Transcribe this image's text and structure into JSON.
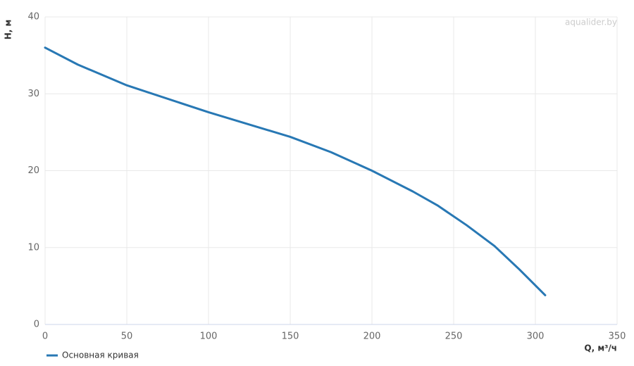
{
  "chart_data": {
    "type": "line",
    "watermark": "aqualider.by",
    "x_label": "Q, м³/ч",
    "y_label": "H, м",
    "x": [
      0,
      20,
      50,
      100,
      150,
      175,
      200,
      225,
      240,
      258,
      275,
      290,
      306
    ],
    "series": [
      {
        "name": "Основная кривая",
        "color": "#2878b4",
        "values": [
          36,
          33.8,
          31.1,
          27.6,
          24.4,
          22.4,
          20,
          17.3,
          15.5,
          12.9,
          10.2,
          7.2,
          3.8
        ]
      }
    ],
    "xlim": [
      0,
      350
    ],
    "xticks": [
      0,
      50,
      100,
      150,
      200,
      250,
      300,
      350
    ],
    "ylim": [
      0,
      40
    ],
    "yticks": [
      0,
      10,
      20,
      30,
      40
    ],
    "grid": true,
    "legend": "bottom-left"
  }
}
